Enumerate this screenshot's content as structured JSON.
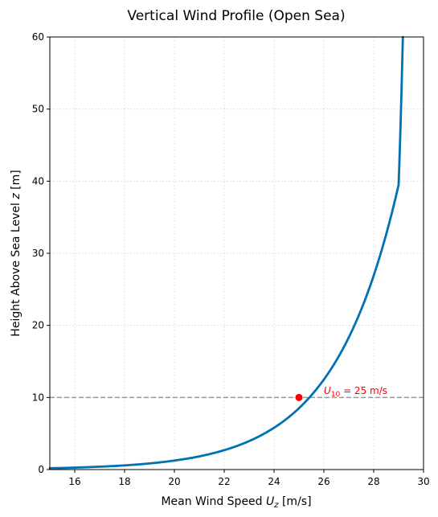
{
  "chart_data": {
    "type": "line",
    "title": "Vertical Wind Profile (Open Sea)",
    "xlabel": {
      "prefix": "Mean Wind Speed ",
      "var": "U",
      "sub": "z",
      "suffix": " [m/s]"
    },
    "ylabel": {
      "prefix": "Height Above Sea Level ",
      "var": "z",
      "suffix": " [m]"
    },
    "xlim": [
      15,
      30
    ],
    "ylim": [
      0,
      60
    ],
    "xticks": [
      16,
      18,
      20,
      22,
      24,
      26,
      28,
      30
    ],
    "yticks": [
      0,
      10,
      20,
      30,
      40,
      50,
      60
    ],
    "grid": true,
    "series": [
      {
        "line_color": "#0072b2",
        "x": [
          15.0,
          15.5,
          16.0,
          16.5,
          17.0,
          17.5,
          18.0,
          18.5,
          19.0,
          19.5,
          20.0,
          20.5,
          21.0,
          21.5,
          22.0,
          22.5,
          23.0,
          23.5,
          24.0,
          24.5,
          25.0,
          25.5,
          26.0,
          26.5,
          27.0,
          27.5,
          28.0,
          28.5,
          29.0,
          29.17
        ],
        "y": [
          0.19,
          0.22,
          0.27,
          0.33,
          0.4,
          0.48,
          0.58,
          0.7,
          0.85,
          1.03,
          1.25,
          1.51,
          1.83,
          2.22,
          2.69,
          3.26,
          3.95,
          4.79,
          5.8,
          7.02,
          8.51,
          10.31,
          12.49,
          15.13,
          18.33,
          22.21,
          26.91,
          32.61,
          39.5,
          60.0
        ]
      }
    ],
    "reference_line": {
      "y": 10,
      "color": "#999999",
      "style": "dashed"
    },
    "highlight_point": {
      "x": 25,
      "y": 10,
      "color": "#ff0000"
    },
    "annotation": {
      "var": "U",
      "sub": "10",
      "text": " = 25 m/s",
      "x": 26,
      "y": 10.5,
      "color": "#ff0000"
    }
  }
}
